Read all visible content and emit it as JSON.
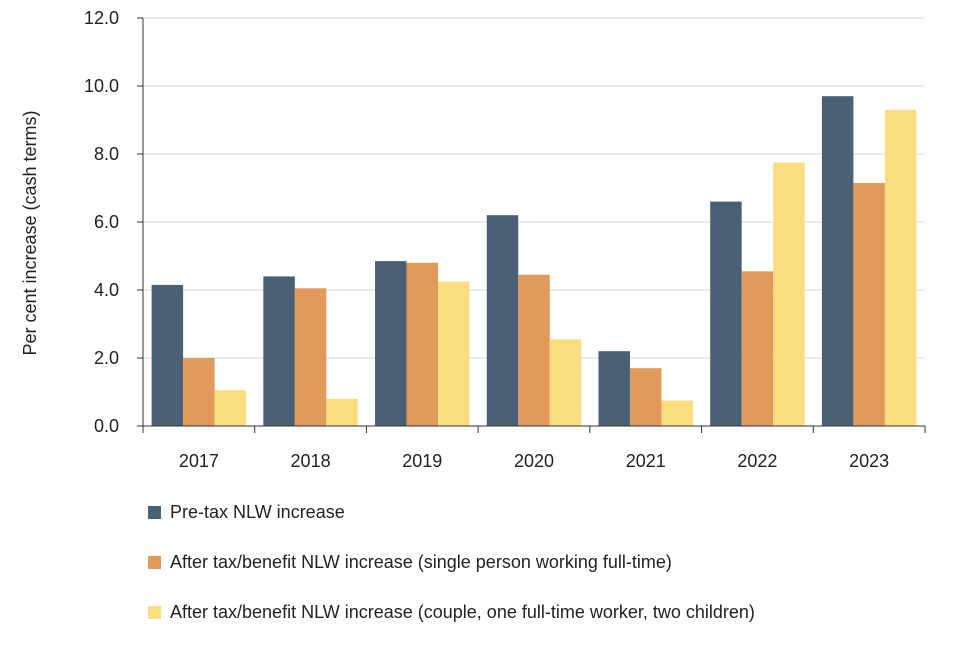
{
  "chart_data": {
    "type": "bar",
    "title": "",
    "xlabel": "",
    "ylabel": "Per cent increase (cash terms)",
    "ylim": [
      0,
      12
    ],
    "yticks": [
      "0.0",
      "2.0",
      "4.0",
      "6.0",
      "8.0",
      "10.0",
      "12.0"
    ],
    "grid": true,
    "legend_position": "bottom",
    "categories": [
      "2017",
      "2018",
      "2019",
      "2020",
      "2021",
      "2022",
      "2023"
    ],
    "series": [
      {
        "name": "Pre-tax NLW increase",
        "color": "#4a6075",
        "values": [
          4.15,
          4.4,
          4.85,
          6.2,
          2.2,
          6.6,
          9.7
        ]
      },
      {
        "name": "After tax/benefit NLW increase (single person working full-time)",
        "color": "#e29a5c",
        "values": [
          2.0,
          4.05,
          4.8,
          4.45,
          1.7,
          4.55,
          7.15
        ]
      },
      {
        "name": "After tax/benefit NLW increase (couple, one full-time worker, two children)",
        "color": "#fadd7e",
        "values": [
          1.05,
          0.8,
          4.25,
          2.55,
          0.75,
          7.75,
          9.3
        ]
      }
    ]
  }
}
